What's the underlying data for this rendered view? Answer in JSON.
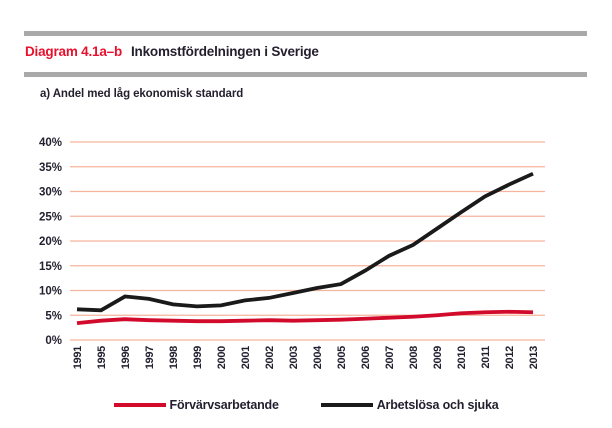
{
  "header": {
    "label": "Diagram 4.1a–b",
    "title": "Inkomstfördelningen i Sverige"
  },
  "panel": {
    "subtitle": "a) Andel med låg ekonomisk standard"
  },
  "chart_data": {
    "type": "line",
    "title": "a) Andel med låg ekonomisk standard",
    "categories": [
      "1991",
      "1995",
      "1996",
      "1997",
      "1998",
      "1999",
      "2000",
      "2001",
      "2002",
      "2003",
      "2004",
      "2005",
      "2006",
      "2007",
      "2008",
      "2009",
      "2010",
      "2011",
      "2012",
      "2013"
    ],
    "series": [
      {
        "name": "Förvärvsarbetande",
        "color": "#d20b2c",
        "values": [
          3.4,
          3.9,
          4.2,
          4.0,
          3.9,
          3.8,
          3.8,
          3.9,
          4.0,
          3.9,
          4.0,
          4.1,
          4.3,
          4.5,
          4.7,
          5.0,
          5.4,
          5.6,
          5.7,
          5.6
        ]
      },
      {
        "name": "Arbetslösa och sjuka",
        "color": "#1a1a1a",
        "values": [
          6.2,
          6.0,
          8.8,
          8.3,
          7.2,
          6.8,
          7.0,
          8.0,
          8.5,
          9.5,
          10.5,
          11.3,
          14.0,
          17.0,
          19.2,
          22.5,
          25.8,
          29.0,
          31.4,
          33.6
        ]
      }
    ],
    "xlabel": "",
    "ylabel": "",
    "ylim": [
      0,
      40
    ],
    "yticks": [
      0,
      5,
      10,
      15,
      20,
      25,
      30,
      35,
      40
    ],
    "ytick_suffix": "%",
    "grid": "horizontal",
    "gridline_color": "#f5b49e",
    "x_label_rotation": -90,
    "legend_position": "bottom"
  },
  "colors": {
    "accent_red": "#e8112d",
    "line_red": "#d20b2c",
    "line_black": "#1a1a1a",
    "text_dark": "#231f2e",
    "rule_gray": "#a9a9a9",
    "grid_salmon": "#f5b49e"
  }
}
